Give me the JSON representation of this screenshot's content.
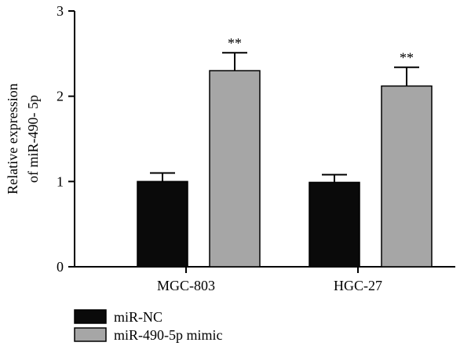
{
  "chart_data": {
    "type": "bar",
    "categories": [
      "MGC-803",
      "HGC-27"
    ],
    "ylabel": [
      "Relative expression",
      "of miR-490- 5p"
    ],
    "ylim": [
      0,
      3
    ],
    "yticks": [
      "0",
      "1",
      "2",
      "3"
    ],
    "legend_position": "bottom-left",
    "series": [
      {
        "name": "miR-NC",
        "color": "#0a0a0a",
        "values": [
          1.0,
          0.99
        ],
        "errors": [
          0.1,
          0.09
        ],
        "annotations": [
          "",
          ""
        ]
      },
      {
        "name": "miR-490-5p mimic",
        "color": "#a6a6a6",
        "values": [
          2.3,
          2.12
        ],
        "errors": [
          0.21,
          0.22
        ],
        "annotations": [
          "**",
          "**"
        ]
      }
    ]
  }
}
